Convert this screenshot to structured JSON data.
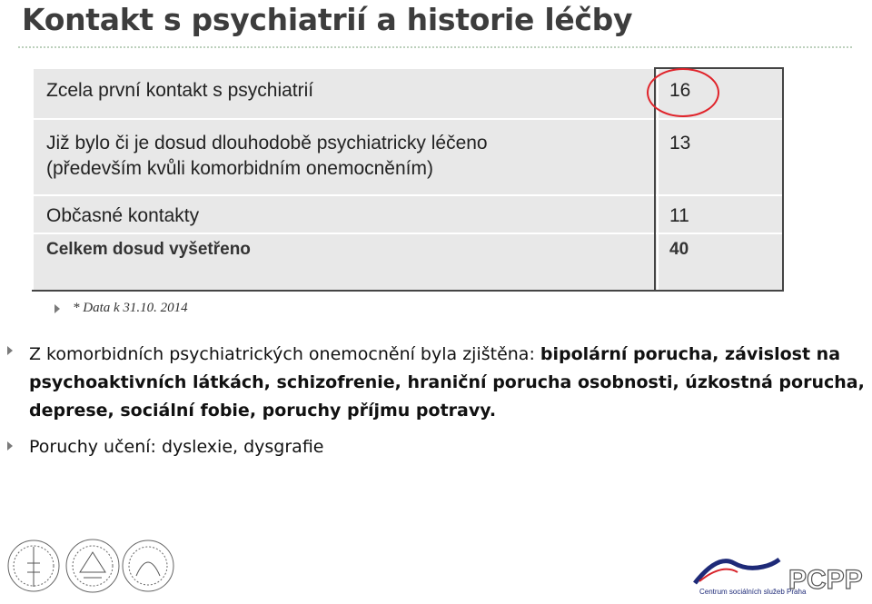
{
  "title": "Kontakt s psychiatrií a historie léčby",
  "table": {
    "rows": [
      {
        "label": "Zcela první kontakt s psychiatrií",
        "value": "16"
      },
      {
        "label_line1": "Již bylo či je dosud dlouhodobě psychiatricky léčeno",
        "label_line2": "(především kvůli komorbidním onemocněním)",
        "value": "13"
      },
      {
        "label": "Občasné kontakty",
        "value": "11"
      },
      {
        "label": "Celkem dosud vyšetřeno",
        "value": "40"
      }
    ],
    "highlight_color": "#e0232a"
  },
  "note": "* Data k 31.10. 2014",
  "para1": {
    "prefix": "Z komorbidních psychiatrických onemocnění byla zjištěna: ",
    "bold": "bipolární porucha, závislost na psychoaktivních látkách, schizofrenie, hraniční porucha osobnosti, úzkostná porucha, deprese, sociální fobie, poruchy příjmu potravy."
  },
  "para2": "Poruchy učení: dyslexie, dysgrafie",
  "logos": {
    "csspp_caption": "Centrum sociálních služeb Praha",
    "pcpp_text": "PCPP",
    "brand_colors": {
      "navy": "#1e2a78",
      "red": "#d8232a"
    }
  }
}
